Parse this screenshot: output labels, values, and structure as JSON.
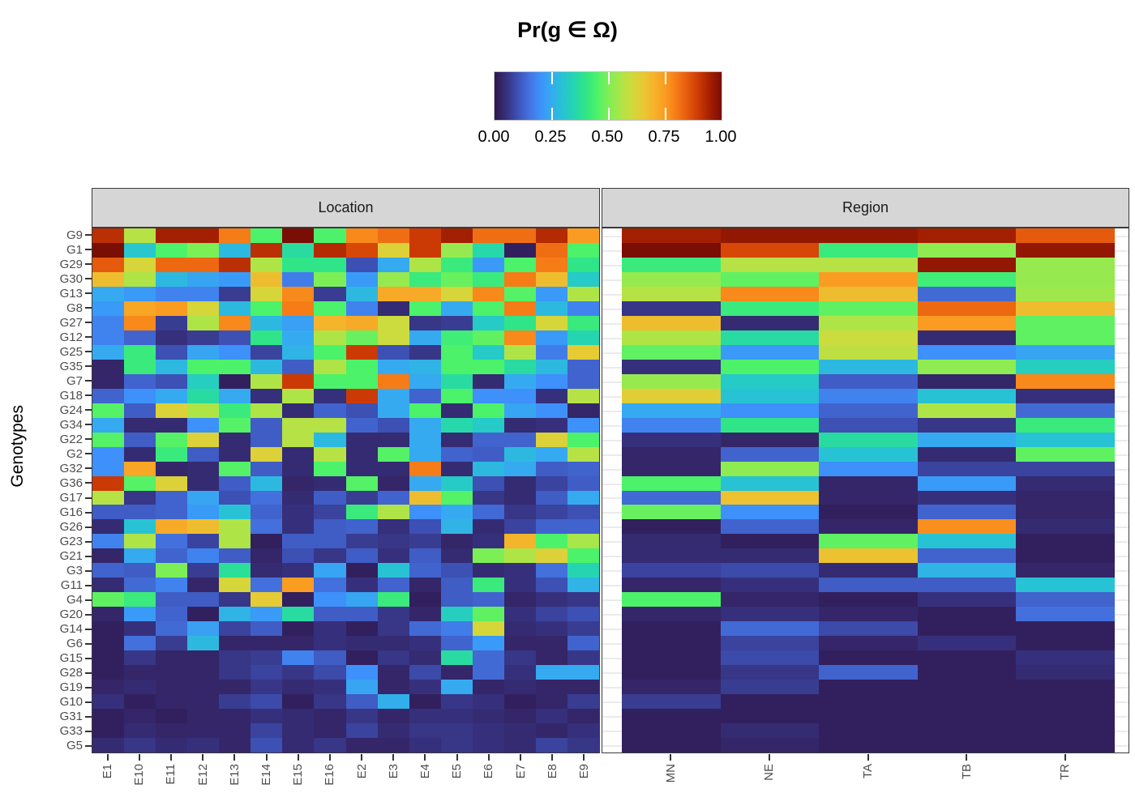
{
  "legend": {
    "title": "Pr(g ∈ Ω)",
    "ticks": [
      "0.00",
      "0.25",
      "0.50",
      "0.75",
      "1.00"
    ]
  },
  "axes": {
    "y_title": "Genotypes"
  },
  "panels": [
    {
      "label": "Location"
    },
    {
      "label": "Region"
    }
  ],
  "chart_data": {
    "type": "heatmap",
    "title": "Pr(g ∈ Ω)",
    "ylabel": "Genotypes",
    "value_range": [
      0,
      1
    ],
    "legend_position": "top",
    "colormap_anchors": [
      [
        0.0,
        "#30164a"
      ],
      [
        0.05,
        "#36307c"
      ],
      [
        0.1,
        "#3d50b4"
      ],
      [
        0.15,
        "#4370dd"
      ],
      [
        0.2,
        "#3e90fb"
      ],
      [
        0.25,
        "#35aaf0"
      ],
      [
        0.3,
        "#27c3d4"
      ],
      [
        0.35,
        "#25d5b2"
      ],
      [
        0.4,
        "#2fe588"
      ],
      [
        0.45,
        "#4bf26a"
      ],
      [
        0.5,
        "#7cef56"
      ],
      [
        0.55,
        "#a8e64a"
      ],
      [
        0.6,
        "#ccdb3d"
      ],
      [
        0.65,
        "#e6cb34"
      ],
      [
        0.7,
        "#f4b42b"
      ],
      [
        0.75,
        "#fb9c22"
      ],
      [
        0.8,
        "#f67c17"
      ],
      [
        0.85,
        "#e65a0d"
      ],
      [
        0.9,
        "#cb3a05"
      ],
      [
        0.95,
        "#a31f02"
      ],
      [
        1.0,
        "#7a0d04"
      ]
    ],
    "genotypes": [
      "G9",
      "G1",
      "G29",
      "G30",
      "G13",
      "G8",
      "G27",
      "G12",
      "G25",
      "G35",
      "G7",
      "G18",
      "G24",
      "G34",
      "G22",
      "G2",
      "G32",
      "G36",
      "G17",
      "G16",
      "G26",
      "G23",
      "G21",
      "G3",
      "G11",
      "G4",
      "G20",
      "G14",
      "G6",
      "G15",
      "G28",
      "G19",
      "G10",
      "G31",
      "G33",
      "G5"
    ],
    "location": {
      "categories": [
        "E1",
        "E10",
        "E11",
        "E12",
        "E13",
        "E14",
        "E15",
        "E16",
        "E2",
        "E3",
        "E4",
        "E5",
        "E6",
        "E7",
        "E8",
        "E9"
      ],
      "values": [
        [
          0.92,
          0.57,
          0.95,
          0.95,
          0.8,
          0.45,
          1.0,
          0.45,
          0.78,
          0.82,
          0.9,
          0.95,
          0.82,
          0.82,
          0.93,
          0.75
        ],
        [
          1.0,
          0.31,
          0.45,
          0.5,
          0.28,
          0.92,
          0.37,
          0.93,
          0.88,
          0.63,
          0.9,
          0.53,
          0.36,
          0.02,
          0.82,
          0.45
        ],
        [
          0.85,
          0.62,
          0.83,
          0.83,
          0.92,
          0.56,
          0.4,
          0.4,
          0.1,
          0.25,
          0.56,
          0.42,
          0.22,
          0.45,
          0.8,
          0.4
        ],
        [
          0.68,
          0.56,
          0.28,
          0.24,
          0.22,
          0.68,
          0.17,
          0.5,
          0.22,
          0.53,
          0.42,
          0.48,
          0.42,
          0.8,
          0.68,
          0.32
        ],
        [
          0.25,
          0.22,
          0.18,
          0.18,
          0.07,
          0.62,
          0.78,
          0.07,
          0.28,
          0.72,
          0.72,
          0.62,
          0.78,
          0.46,
          0.22,
          0.56
        ],
        [
          0.22,
          0.73,
          0.75,
          0.62,
          0.28,
          0.45,
          0.8,
          0.45,
          0.18,
          0.04,
          0.45,
          0.25,
          0.45,
          0.8,
          0.28,
          0.18
        ],
        [
          0.18,
          0.78,
          0.07,
          0.56,
          0.78,
          0.28,
          0.23,
          0.7,
          0.72,
          0.6,
          0.06,
          0.07,
          0.32,
          0.4,
          0.62,
          0.42
        ],
        [
          0.18,
          0.13,
          0.05,
          0.07,
          0.1,
          0.4,
          0.25,
          0.56,
          0.48,
          0.6,
          0.25,
          0.43,
          0.47,
          0.78,
          0.22,
          0.35
        ],
        [
          0.25,
          0.42,
          0.1,
          0.24,
          0.2,
          0.08,
          0.27,
          0.45,
          0.9,
          0.1,
          0.06,
          0.45,
          0.32,
          0.56,
          0.17,
          0.65
        ],
        [
          0.03,
          0.42,
          0.28,
          0.45,
          0.45,
          0.28,
          0.12,
          0.56,
          0.45,
          0.25,
          0.27,
          0.45,
          0.45,
          0.37,
          0.28,
          0.13
        ],
        [
          0.03,
          0.13,
          0.1,
          0.33,
          0.02,
          0.56,
          0.9,
          0.45,
          0.45,
          0.8,
          0.25,
          0.37,
          0.04,
          0.25,
          0.2,
          0.13
        ],
        [
          0.13,
          0.2,
          0.25,
          0.37,
          0.25,
          0.05,
          0.56,
          0.05,
          0.9,
          0.25,
          0.13,
          0.45,
          0.2,
          0.2,
          0.05,
          0.57
        ],
        [
          0.46,
          0.12,
          0.63,
          0.56,
          0.42,
          0.56,
          0.04,
          0.13,
          0.1,
          0.25,
          0.45,
          0.04,
          0.45,
          0.24,
          0.2,
          0.03
        ],
        [
          0.25,
          0.04,
          0.04,
          0.2,
          0.46,
          0.12,
          0.57,
          0.57,
          0.13,
          0.1,
          0.25,
          0.36,
          0.32,
          0.04,
          0.05,
          0.2
        ],
        [
          0.46,
          0.12,
          0.46,
          0.63,
          0.04,
          0.12,
          0.57,
          0.28,
          0.04,
          0.04,
          0.25,
          0.04,
          0.13,
          0.13,
          0.63,
          0.45
        ],
        [
          0.2,
          0.04,
          0.42,
          0.12,
          0.04,
          0.63,
          0.04,
          0.57,
          0.04,
          0.46,
          0.25,
          0.13,
          0.12,
          0.28,
          0.25,
          0.57
        ],
        [
          0.2,
          0.73,
          0.03,
          0.04,
          0.46,
          0.12,
          0.04,
          0.45,
          0.04,
          0.04,
          0.8,
          0.04,
          0.28,
          0.25,
          0.12,
          0.13
        ],
        [
          0.9,
          0.46,
          0.63,
          0.04,
          0.12,
          0.28,
          0.03,
          0.04,
          0.46,
          0.03,
          0.25,
          0.32,
          0.1,
          0.04,
          0.08,
          0.12
        ],
        [
          0.57,
          0.06,
          0.13,
          0.24,
          0.1,
          0.15,
          0.04,
          0.12,
          0.07,
          0.13,
          0.68,
          0.46,
          0.06,
          0.04,
          0.12,
          0.25
        ],
        [
          0.12,
          0.12,
          0.13,
          0.22,
          0.3,
          0.13,
          0.05,
          0.08,
          0.42,
          0.56,
          0.2,
          0.25,
          0.14,
          0.06,
          0.08,
          0.1
        ],
        [
          0.04,
          0.3,
          0.72,
          0.68,
          0.56,
          0.15,
          0.05,
          0.12,
          0.13,
          0.05,
          0.1,
          0.27,
          0.04,
          0.08,
          0.13,
          0.13
        ],
        [
          0.18,
          0.56,
          0.15,
          0.08,
          0.56,
          0.02,
          0.12,
          0.12,
          0.07,
          0.06,
          0.07,
          0.03,
          0.05,
          0.7,
          0.45,
          0.55
        ],
        [
          0.03,
          0.25,
          0.13,
          0.18,
          0.12,
          0.03,
          0.1,
          0.06,
          0.12,
          0.05,
          0.12,
          0.04,
          0.5,
          0.56,
          0.63,
          0.45
        ],
        [
          0.13,
          0.12,
          0.5,
          0.07,
          0.38,
          0.04,
          0.05,
          0.24,
          0.02,
          0.3,
          0.13,
          0.1,
          0.04,
          0.05,
          0.15,
          0.35
        ],
        [
          0.04,
          0.14,
          0.18,
          0.03,
          0.62,
          0.15,
          0.75,
          0.15,
          0.05,
          0.13,
          0.03,
          0.12,
          0.42,
          0.05,
          0.1,
          0.27
        ],
        [
          0.47,
          0.42,
          0.12,
          0.12,
          0.06,
          0.65,
          0.02,
          0.2,
          0.24,
          0.42,
          0.02,
          0.12,
          0.13,
          0.03,
          0.05,
          0.06
        ],
        [
          0.03,
          0.22,
          0.13,
          0.02,
          0.27,
          0.22,
          0.37,
          0.12,
          0.12,
          0.06,
          0.03,
          0.33,
          0.47,
          0.05,
          0.08,
          0.1
        ],
        [
          0.02,
          0.05,
          0.14,
          0.23,
          0.08,
          0.12,
          0.02,
          0.05,
          0.02,
          0.06,
          0.14,
          0.17,
          0.62,
          0.04,
          0.05,
          0.07
        ],
        [
          0.02,
          0.15,
          0.07,
          0.28,
          0.03,
          0.03,
          0.03,
          0.05,
          0.04,
          0.04,
          0.05,
          0.13,
          0.22,
          0.03,
          0.03,
          0.13
        ],
        [
          0.02,
          0.06,
          0.03,
          0.03,
          0.06,
          0.07,
          0.18,
          0.12,
          0.02,
          0.06,
          0.04,
          0.37,
          0.14,
          0.06,
          0.03,
          0.06
        ],
        [
          0.02,
          0.03,
          0.03,
          0.03,
          0.06,
          0.08,
          0.06,
          0.09,
          0.2,
          0.03,
          0.09,
          0.03,
          0.14,
          0.05,
          0.25,
          0.25
        ],
        [
          0.03,
          0.04,
          0.03,
          0.03,
          0.03,
          0.06,
          0.04,
          0.05,
          0.24,
          0.03,
          0.05,
          0.25,
          0.03,
          0.04,
          0.03,
          0.03
        ],
        [
          0.05,
          0.02,
          0.03,
          0.03,
          0.07,
          0.09,
          0.02,
          0.06,
          0.12,
          0.26,
          0.02,
          0.06,
          0.05,
          0.02,
          0.03,
          0.07
        ],
        [
          0.02,
          0.03,
          0.02,
          0.03,
          0.03,
          0.05,
          0.04,
          0.03,
          0.06,
          0.03,
          0.05,
          0.05,
          0.04,
          0.03,
          0.05,
          0.03
        ],
        [
          0.02,
          0.04,
          0.03,
          0.03,
          0.03,
          0.08,
          0.04,
          0.03,
          0.08,
          0.04,
          0.06,
          0.06,
          0.05,
          0.04,
          0.03,
          0.05
        ],
        [
          0.04,
          0.06,
          0.04,
          0.05,
          0.03,
          0.1,
          0.04,
          0.06,
          0.03,
          0.03,
          0.05,
          0.06,
          0.05,
          0.04,
          0.08,
          0.06
        ]
      ]
    },
    "region": {
      "categories": [
        "MN",
        "NE",
        "TA",
        "TB",
        "TR"
      ],
      "values": [
        [
          0.95,
          0.97,
          0.97,
          0.95,
          0.85
        ],
        [
          1.0,
          0.88,
          0.42,
          0.52,
          0.97
        ],
        [
          0.42,
          0.57,
          0.57,
          0.97,
          0.53
        ],
        [
          0.53,
          0.47,
          0.75,
          0.43,
          0.53
        ],
        [
          0.57,
          0.78,
          0.68,
          0.14,
          0.54
        ],
        [
          0.06,
          0.42,
          0.47,
          0.83,
          0.68
        ],
        [
          0.68,
          0.04,
          0.56,
          0.75,
          0.47
        ],
        [
          0.56,
          0.37,
          0.6,
          0.04,
          0.47
        ],
        [
          0.47,
          0.22,
          0.58,
          0.2,
          0.24
        ],
        [
          0.05,
          0.45,
          0.28,
          0.52,
          0.33
        ],
        [
          0.53,
          0.32,
          0.12,
          0.03,
          0.78
        ],
        [
          0.64,
          0.3,
          0.18,
          0.3,
          0.05
        ],
        [
          0.25,
          0.2,
          0.13,
          0.56,
          0.14
        ],
        [
          0.18,
          0.4,
          0.1,
          0.06,
          0.42
        ],
        [
          0.05,
          0.03,
          0.37,
          0.25,
          0.3
        ],
        [
          0.03,
          0.13,
          0.3,
          0.04,
          0.47
        ],
        [
          0.03,
          0.52,
          0.2,
          0.08,
          0.08
        ],
        [
          0.45,
          0.3,
          0.03,
          0.22,
          0.04
        ],
        [
          0.14,
          0.67,
          0.03,
          0.05,
          0.03
        ],
        [
          0.48,
          0.2,
          0.02,
          0.13,
          0.03
        ],
        [
          0.02,
          0.13,
          0.03,
          0.77,
          0.04
        ],
        [
          0.04,
          0.02,
          0.47,
          0.3,
          0.02
        ],
        [
          0.04,
          0.04,
          0.67,
          0.13,
          0.02
        ],
        [
          0.08,
          0.09,
          0.04,
          0.27,
          0.03
        ],
        [
          0.03,
          0.05,
          0.12,
          0.12,
          0.3
        ],
        [
          0.45,
          0.03,
          0.02,
          0.05,
          0.13
        ],
        [
          0.03,
          0.05,
          0.03,
          0.02,
          0.15
        ],
        [
          0.02,
          0.14,
          0.09,
          0.02,
          0.02
        ],
        [
          0.02,
          0.08,
          0.03,
          0.05,
          0.02
        ],
        [
          0.02,
          0.09,
          0.02,
          0.02,
          0.05
        ],
        [
          0.02,
          0.06,
          0.13,
          0.02,
          0.04
        ],
        [
          0.03,
          0.07,
          0.02,
          0.02,
          0.02
        ],
        [
          0.07,
          0.02,
          0.02,
          0.02,
          0.02
        ],
        [
          0.02,
          0.02,
          0.02,
          0.02,
          0.02
        ],
        [
          0.02,
          0.04,
          0.02,
          0.02,
          0.02
        ],
        [
          0.02,
          0.03,
          0.02,
          0.02,
          0.02
        ]
      ]
    }
  }
}
